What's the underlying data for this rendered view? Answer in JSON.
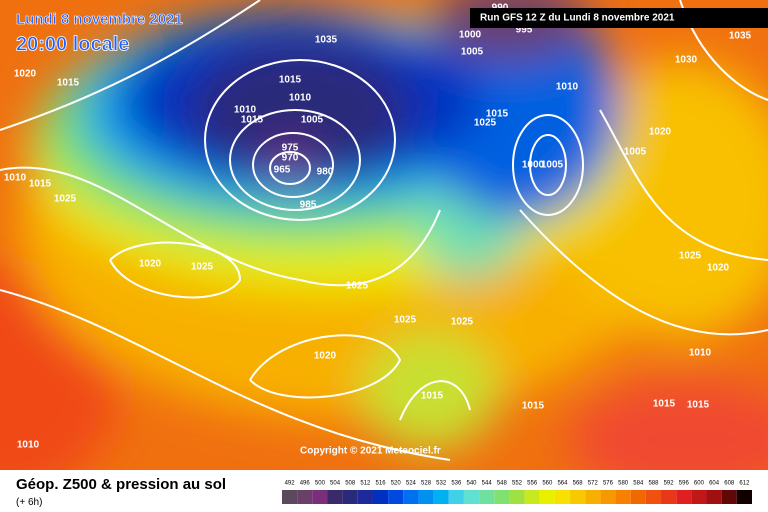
{
  "header": {
    "title": "Lundi 8 novembre 2021",
    "time": "20:00 locale",
    "run": "Run GFS 12 Z du Lundi 8 novembre 2021"
  },
  "copyright": "Copyright © 2021 Meteociel.fr",
  "footer": {
    "title": "Géop. Z500 & pression au sol",
    "subtitle": "(+ 6h)"
  },
  "isobar_labels": [
    "990",
    "995",
    "1000",
    "1005",
    "1035",
    "1030",
    "1020",
    "1015",
    "1035",
    "1015",
    "1010",
    "1010",
    "1015",
    "1005",
    "975",
    "970",
    "965",
    "980",
    "985",
    "1010",
    "1015",
    "1025",
    "1020",
    "1005",
    "1000",
    "1005",
    "1010",
    "1015",
    "1025",
    "1020",
    "1025",
    "1025",
    "1020",
    "1025",
    "1025",
    "1025",
    "1020",
    "1010",
    "1015",
    "1015",
    "1015",
    "1015",
    "1010"
  ],
  "scale": {
    "labels": [
      "492",
      "496",
      "500",
      "504",
      "508",
      "512",
      "516",
      "520",
      "524",
      "528",
      "532",
      "536",
      "540",
      "544",
      "548",
      "552",
      "556",
      "560",
      "564",
      "568",
      "572",
      "576",
      "580",
      "584",
      "588",
      "592",
      "596",
      "600",
      "604",
      "608",
      "612"
    ],
    "colors": [
      "#5c4a5c",
      "#6a3f6a",
      "#7a2f7a",
      "#3a2a6a",
      "#2a2a7a",
      "#1c2a9a",
      "#0030c0",
      "#0048e0",
      "#0070f0",
      "#0090f0",
      "#00b0f0",
      "#40d0e8",
      "#60e0d0",
      "#70e0a0",
      "#80e070",
      "#a0e040",
      "#c8e820",
      "#e8f000",
      "#f8e000",
      "#f8c800",
      "#f8b000",
      "#f89800",
      "#f88000",
      "#f06800",
      "#f05010",
      "#e83818",
      "#e02020",
      "#c01818",
      "#a01010",
      "#600808",
      "#100000"
    ]
  }
}
